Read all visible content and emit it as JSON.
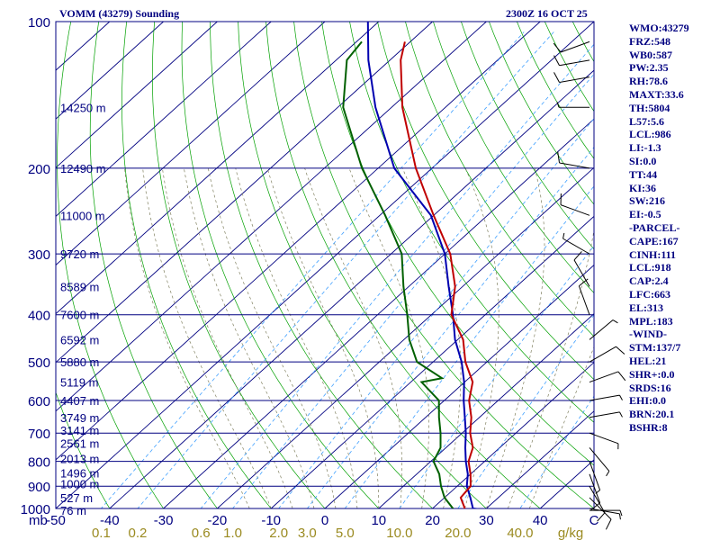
{
  "header": {
    "station": "VOMM (43279) Sounding",
    "time": "2300Z 16 OCT 25"
  },
  "stats": [
    "WMO:43279",
    "FRZ:548",
    "WB0:587",
    "PW:2.35",
    "RH:78.6",
    "MAXT:33.6",
    "TH:5804",
    "L57:5.6",
    "LCL:986",
    "LI:-1.3",
    "SI:0.0",
    "TT:44",
    "KI:36",
    "SW:216",
    "EI:-0.5",
    "-PARCEL-",
    "CAPE:167",
    "CINH:111",
    "LCL:918",
    "CAP:2.4",
    "LFC:663",
    "EL:313",
    "MPL:183",
    "-WIND-",
    "STM:137/7",
    "HEL:21",
    "SHR+:0.0",
    "SRDS:16",
    "EHI:0.0",
    "BRN:20.1",
    "BSHR:8"
  ],
  "colors": {
    "isobar": "#000080",
    "isotherm": "#000080",
    "dry_adiabat": "#00a000",
    "moist_adiabat": "#808060",
    "mixing_ratio": "#40a0ff",
    "temperature": "#c00000",
    "dewpoint": "#006000",
    "parcel": "#0000b0",
    "label": "#000080",
    "mixing_label": "#9a8a20",
    "wind": "#000000"
  },
  "chart_data": {
    "type": "skew-t",
    "pressure_unit": "mb",
    "pressure_range": [
      1000,
      100
    ],
    "temperature_unit": "C",
    "temperature_range_at_base": [
      -50,
      50
    ],
    "skew_per_decade_C": 100,
    "isobars": [
      1000,
      900,
      800,
      700,
      600,
      500,
      400,
      300,
      200,
      100
    ],
    "isotherm_ticks": [
      "-50",
      "-40",
      "-30",
      "-20",
      "-10",
      "0",
      "10",
      "20",
      "30",
      "40",
      "C"
    ],
    "height_levels": [
      {
        "p": 1009,
        "label": "76 m"
      },
      {
        "p": 950,
        "label": "527 m"
      },
      {
        "p": 890,
        "label": "1000 m"
      },
      {
        "p": 845,
        "label": "1496 m"
      },
      {
        "p": 790,
        "label": "2013 m"
      },
      {
        "p": 735,
        "label": "2561 m"
      },
      {
        "p": 690,
        "label": "3141 m"
      },
      {
        "p": 650,
        "label": "3749 m"
      },
      {
        "p": 600,
        "label": "4407 m"
      },
      {
        "p": 550,
        "label": "5119 m"
      },
      {
        "p": 500,
        "label": "5880 m"
      },
      {
        "p": 450,
        "label": "6592 m"
      },
      {
        "p": 400,
        "label": "7600 m"
      },
      {
        "p": 350,
        "label": "8589 m"
      },
      {
        "p": 300,
        "label": "9720 m"
      },
      {
        "p": 250,
        "label": "11000 m"
      },
      {
        "p": 200,
        "label": "12490 m"
      },
      {
        "p": 150,
        "label": "14250 m"
      }
    ],
    "mixing_ratios": [
      {
        "w": 0.1,
        "label": "0.1"
      },
      {
        "w": 0.2,
        "label": "0.2"
      },
      {
        "w": 0.6,
        "label": "0.6"
      },
      {
        "w": 1.0,
        "label": "1.0"
      },
      {
        "w": 2.0,
        "label": "2.0"
      },
      {
        "w": 3.0,
        "label": "3.0"
      },
      {
        "w": 5.0,
        "label": "5.0"
      },
      {
        "w": 10.0,
        "label": "10.0"
      },
      {
        "w": 20.0,
        "label": "20.0"
      },
      {
        "w": 40.0,
        "label": "40.0"
      }
    ],
    "mixing_unit": "g/kg",
    "temperature_profile": [
      [
        1009,
        25.5
      ],
      [
        1000,
        26
      ],
      [
        950,
        23
      ],
      [
        900,
        22.5
      ],
      [
        850,
        20
      ],
      [
        800,
        17
      ],
      [
        750,
        15
      ],
      [
        700,
        11.5
      ],
      [
        650,
        8.5
      ],
      [
        600,
        4.6
      ],
      [
        550,
        1.5
      ],
      [
        500,
        -4
      ],
      [
        450,
        -9
      ],
      [
        400,
        -16.3
      ],
      [
        350,
        -21.4
      ],
      [
        300,
        -29
      ],
      [
        250,
        -40
      ],
      [
        200,
        -53
      ],
      [
        150,
        -68
      ],
      [
        120,
        -78
      ],
      [
        110,
        -81
      ]
    ],
    "dewpoint_profile": [
      [
        1009,
        24
      ],
      [
        1000,
        23.8
      ],
      [
        950,
        20
      ],
      [
        900,
        17
      ],
      [
        850,
        14.2
      ],
      [
        800,
        10.5
      ],
      [
        750,
        9
      ],
      [
        700,
        6
      ],
      [
        650,
        2.5
      ],
      [
        600,
        -1
      ],
      [
        550,
        -8
      ],
      [
        540,
        -5
      ],
      [
        500,
        -13
      ],
      [
        450,
        -19
      ],
      [
        400,
        -24.5
      ],
      [
        350,
        -31
      ],
      [
        300,
        -38
      ],
      [
        250,
        -49
      ],
      [
        200,
        -63
      ],
      [
        150,
        -79
      ],
      [
        120,
        -88
      ],
      [
        110,
        -89
      ]
    ],
    "parcel_profile": [
      [
        1009,
        31
      ],
      [
        1000,
        27.5
      ],
      [
        950,
        24.8
      ],
      [
        900,
        21.8
      ],
      [
        850,
        19.5
      ],
      [
        800,
        16.5
      ],
      [
        750,
        13.6
      ],
      [
        700,
        10.7
      ],
      [
        650,
        7.3
      ],
      [
        600,
        3.6
      ],
      [
        550,
        -0.1
      ],
      [
        500,
        -4.7
      ],
      [
        450,
        -10.5
      ],
      [
        400,
        -16
      ],
      [
        350,
        -22.6
      ],
      [
        300,
        -30
      ],
      [
        250,
        -40.5
      ],
      [
        200,
        -57
      ],
      [
        150,
        -73
      ],
      [
        120,
        -84
      ],
      [
        100,
        -92
      ]
    ],
    "wind_barbs": [
      {
        "p": 1009,
        "dir": 90,
        "kt": 5
      },
      {
        "p": 1000,
        "dir": 100,
        "kt": 5
      },
      {
        "p": 950,
        "dir": 135,
        "kt": 10
      },
      {
        "p": 900,
        "dir": 150,
        "kt": 10
      },
      {
        "p": 850,
        "dir": 160,
        "kt": 10
      },
      {
        "p": 800,
        "dir": 160,
        "kt": 5
      },
      {
        "p": 750,
        "dir": 140,
        "kt": 5
      },
      {
        "p": 700,
        "dir": 110,
        "kt": 5
      },
      {
        "p": 650,
        "dir": 80,
        "kt": 5
      },
      {
        "p": 600,
        "dir": 80,
        "kt": 5
      },
      {
        "p": 550,
        "dir": 70,
        "kt": 10
      },
      {
        "p": 500,
        "dir": 60,
        "kt": 10
      },
      {
        "p": 450,
        "dir": 50,
        "kt": 5
      },
      {
        "p": 400,
        "dir": 340,
        "kt": 10
      },
      {
        "p": 350,
        "dir": 330,
        "kt": 10
      },
      {
        "p": 300,
        "dir": 300,
        "kt": 5
      },
      {
        "p": 250,
        "dir": 290,
        "kt": 10
      },
      {
        "p": 200,
        "dir": 280,
        "kt": 10
      },
      {
        "p": 150,
        "dir": 270,
        "kt": 5
      },
      {
        "p": 130,
        "dir": 260,
        "kt": 10
      },
      {
        "p": 120,
        "dir": 260,
        "kt": 10
      },
      {
        "p": 110,
        "dir": 250,
        "kt": 10
      }
    ]
  }
}
